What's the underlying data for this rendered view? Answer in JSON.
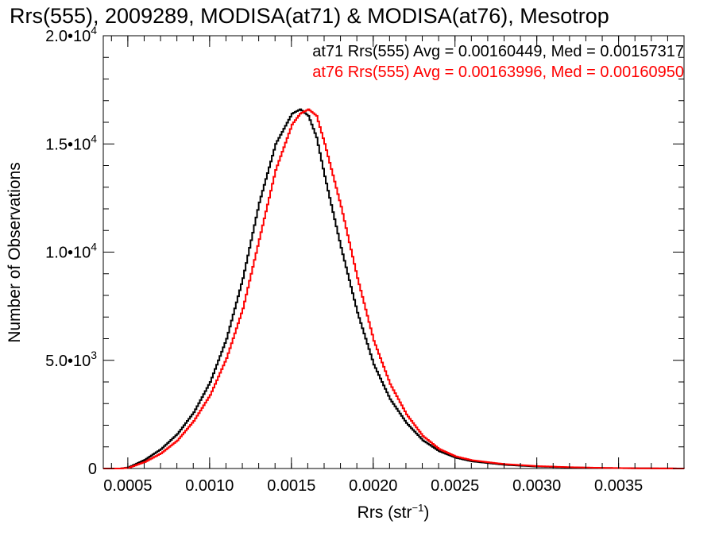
{
  "chart_data": {
    "type": "line",
    "title": "Rrs(555), 2009289, MODISA(at71) & MODISA(at76), Mesotrop",
    "xlabel": "Rrs (str",
    "xlabel_sup": "−1",
    "xlabel_close": ")",
    "ylabel": "Number of Observations",
    "xlim": [
      0.00035,
      0.0039
    ],
    "ylim": [
      0,
      20000
    ],
    "x_ticks": [
      {
        "value": 0.0005,
        "label": "0.0005"
      },
      {
        "value": 0.001,
        "label": "0.0010"
      },
      {
        "value": 0.0015,
        "label": "0.0015"
      },
      {
        "value": 0.002,
        "label": "0.0020"
      },
      {
        "value": 0.0025,
        "label": "0.0025"
      },
      {
        "value": 0.003,
        "label": "0.0030"
      },
      {
        "value": 0.0035,
        "label": "0.0035"
      }
    ],
    "y_ticks": [
      {
        "value": 0,
        "mantissa": "0",
        "exp": ""
      },
      {
        "value": 5000,
        "mantissa": "5.0•10",
        "exp": "3"
      },
      {
        "value": 10000,
        "mantissa": "1.0•10",
        "exp": "4"
      },
      {
        "value": 15000,
        "mantissa": "1.5•10",
        "exp": "4"
      },
      {
        "value": 20000,
        "mantissa": "2.0•10",
        "exp": "4"
      }
    ],
    "grid": false,
    "legend_position": "top-right",
    "series": [
      {
        "name": "at71",
        "color": "#000000",
        "legend_text": "at71 Rrs(555) Avg = 0.00160449, Med = 0.00157317",
        "x": [
          0.00035,
          0.00045,
          0.0005,
          0.0006,
          0.0007,
          0.0008,
          0.0009,
          0.001,
          0.0011,
          0.0012,
          0.0013,
          0.0014,
          0.0015,
          0.00155,
          0.0016,
          0.00165,
          0.0017,
          0.0018,
          0.0019,
          0.002,
          0.0021,
          0.0022,
          0.0023,
          0.0024,
          0.0025,
          0.0026,
          0.0028,
          0.003,
          0.0032,
          0.0034,
          0.0036,
          0.0039
        ],
        "y": [
          0,
          0,
          50,
          400,
          900,
          1600,
          2600,
          4000,
          6000,
          8800,
          12300,
          15000,
          16400,
          16600,
          16300,
          15300,
          13500,
          10200,
          7200,
          4800,
          3200,
          2100,
          1300,
          800,
          500,
          330,
          170,
          90,
          50,
          25,
          10,
          0
        ]
      },
      {
        "name": "at76",
        "color": "#ff0000",
        "legend_text": "at76 Rrs(555) Avg = 0.00163996, Med = 0.00160950",
        "x": [
          0.00035,
          0.00045,
          0.0005,
          0.0006,
          0.0007,
          0.0008,
          0.0009,
          0.001,
          0.0011,
          0.0012,
          0.0013,
          0.0014,
          0.0015,
          0.00155,
          0.0016,
          0.00165,
          0.0017,
          0.0018,
          0.0019,
          0.002,
          0.0021,
          0.0022,
          0.0023,
          0.0024,
          0.0025,
          0.0026,
          0.0028,
          0.003,
          0.0032,
          0.0034,
          0.0036,
          0.0039
        ],
        "y": [
          0,
          0,
          30,
          300,
          700,
          1300,
          2200,
          3400,
          5100,
          7400,
          10600,
          13800,
          15900,
          16400,
          16600,
          16300,
          15000,
          12100,
          8800,
          5900,
          3900,
          2500,
          1500,
          900,
          560,
          380,
          200,
          110,
          60,
          30,
          12,
          0
        ]
      }
    ]
  }
}
